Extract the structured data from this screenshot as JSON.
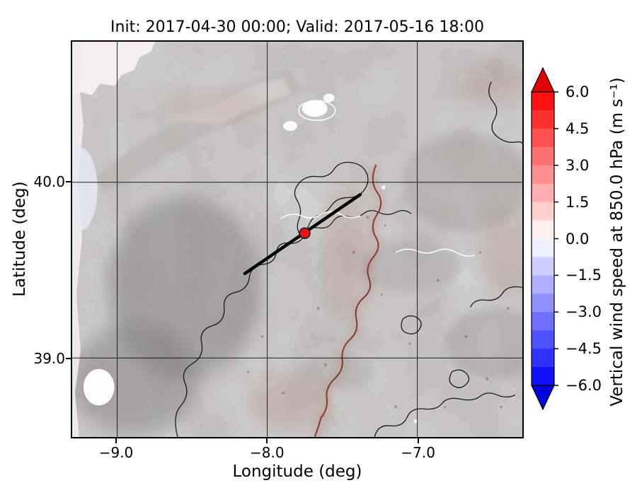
{
  "figure": {
    "title": "Init: 2017-04-30 00:00; Valid: 2017-05-16 18:00"
  },
  "chart_data": {
    "type": "heatmap",
    "title": "Init: 2017-04-30 00:00; Valid: 2017-05-16 18:00",
    "init_time": "2017-04-30 00:00",
    "valid_time": "2017-05-16 18:00",
    "xlabel": "Longitude (deg)",
    "ylabel": "Latitude (deg)",
    "xlim": [
      -9.3,
      -6.3
    ],
    "ylim": [
      38.55,
      40.8
    ],
    "xticks": [
      -9.0,
      -8.0,
      -7.0
    ],
    "xtick_labels": [
      "−9.0",
      "−8.0",
      "−7.0"
    ],
    "yticks": [
      40.0,
      39.0
    ],
    "ytick_labels": [
      "40.0",
      "39.0"
    ],
    "grid": true,
    "colorbar": {
      "label": "Vertical wind speed at 850.0 hPa (m s⁻¹)",
      "vmin": -6.0,
      "vmax": 6.0,
      "band_step": 0.75,
      "extend": "both",
      "ticks": [
        6.0,
        4.5,
        3.0,
        1.5,
        0.0,
        -1.5,
        -3.0,
        -4.5,
        -6.0
      ],
      "tick_labels": [
        "6.0",
        "4.5",
        "3.0",
        "1.5",
        "0.0",
        "−1.5",
        "−3.0",
        "−4.5",
        "−6.0"
      ],
      "over_color": "#dd0000",
      "under_color": "#0000dd",
      "bands": [
        "#ff1010",
        "#ff3030",
        "#ff5050",
        "#ff7070",
        "#ff8f8f",
        "#ffafaf",
        "#ffcfcf",
        "#ffefef",
        "#efefff",
        "#cfcfff",
        "#afafff",
        "#8f8fff",
        "#7070ff",
        "#5050ff",
        "#3030ff",
        "#1010ff"
      ]
    },
    "annotations": {
      "cross_section_line": {
        "from": [
          -8.15,
          39.48
        ],
        "to": [
          -7.38,
          39.93
        ],
        "color": "#000000",
        "width": 4.5
      },
      "marker": {
        "lon": -7.75,
        "lat": 39.71,
        "color": "#e8120e",
        "edge": "#000000",
        "radius": 7.5
      }
    },
    "map_colors": {
      "land_base": "#8f8c8c",
      "ocean": "#f3edf0",
      "high_terrain": "#ffffff",
      "contour": "#1a1a1a",
      "river": "#7c2f22"
    }
  }
}
